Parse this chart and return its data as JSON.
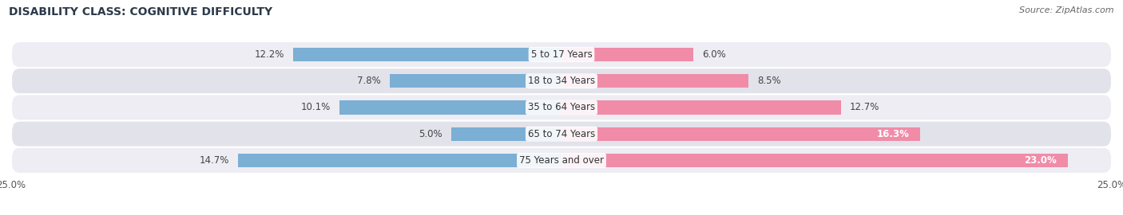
{
  "title": "DISABILITY CLASS: COGNITIVE DIFFICULTY",
  "source": "Source: ZipAtlas.com",
  "categories": [
    "5 to 17 Years",
    "18 to 34 Years",
    "35 to 64 Years",
    "65 to 74 Years",
    "75 Years and over"
  ],
  "male_values": [
    12.2,
    7.8,
    10.1,
    5.0,
    14.7
  ],
  "female_values": [
    6.0,
    8.5,
    12.7,
    16.3,
    23.0
  ],
  "x_max": 25.0,
  "male_color": "#7bafd4",
  "female_color": "#f08ca8",
  "row_bg_odd": "#ededf3",
  "row_bg_even": "#e2e2ea",
  "bar_height": 0.52,
  "label_fontsize": 8.5,
  "title_fontsize": 10,
  "source_fontsize": 8,
  "axis_label_fontsize": 8.5
}
